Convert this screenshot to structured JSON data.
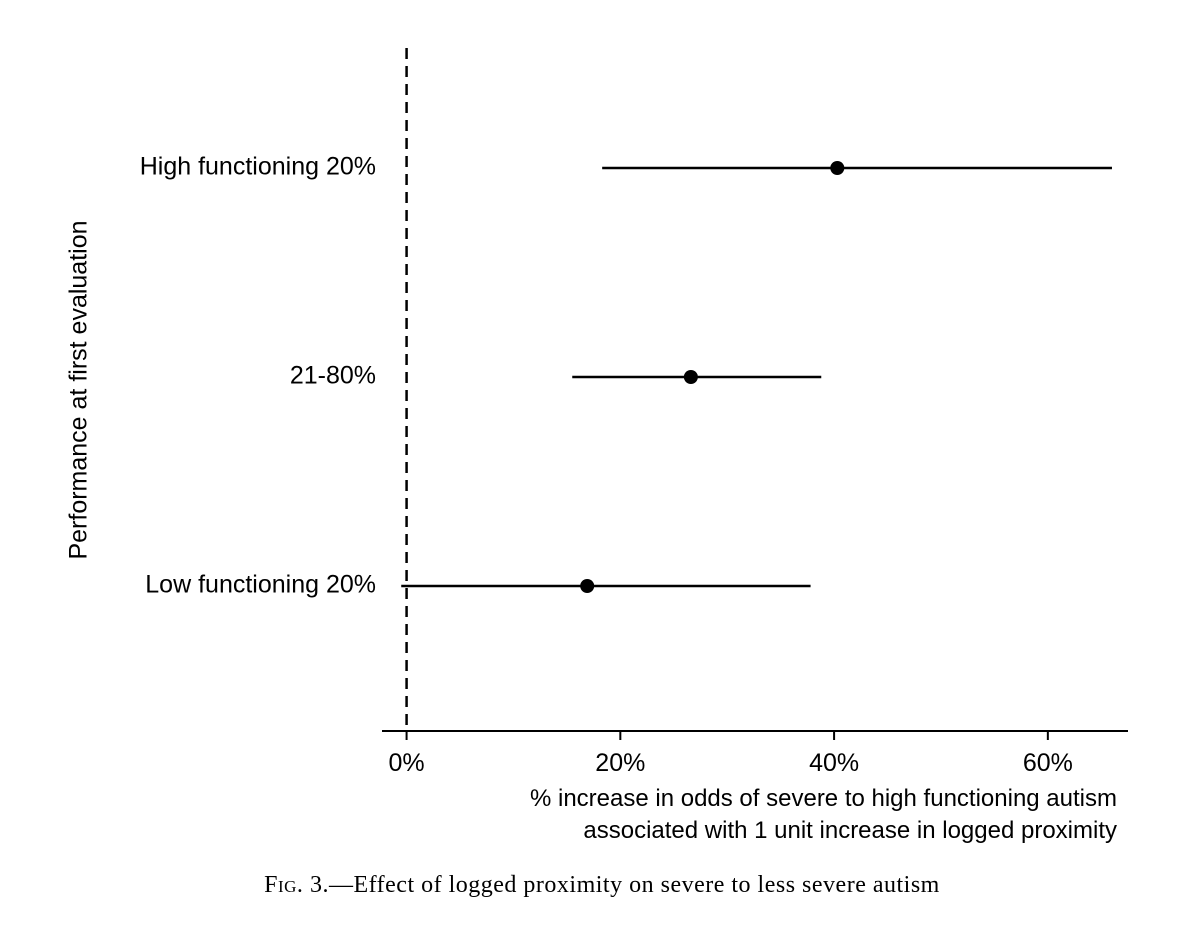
{
  "chart_data": {
    "type": "forest",
    "ylabel": "Performance at first evaluation",
    "xlabel_lines": [
      "% increase in odds of severe to high functioning autism",
      "associated with 1 unit increase in logged proximity"
    ],
    "x_ticks": [
      0,
      20,
      40,
      60
    ],
    "x_tick_labels": [
      "0%",
      "20%",
      "40%",
      "60%"
    ],
    "xlim": [
      -2.3,
      67.5
    ],
    "reference_line": 0,
    "categories": [
      "High functioning 20%",
      "21-80%",
      "Low functioning 20%"
    ],
    "series": [
      {
        "estimate": 40.3,
        "lower": 18.3,
        "upper": 66.0
      },
      {
        "estimate": 26.6,
        "lower": 15.5,
        "upper": 38.8
      },
      {
        "estimate": 16.9,
        "lower": -0.5,
        "upper": 37.8
      }
    ]
  },
  "caption": {
    "fig_prefix": "Fig.",
    "text": " 3.—Effect of logged proximity on severe to less severe autism"
  }
}
